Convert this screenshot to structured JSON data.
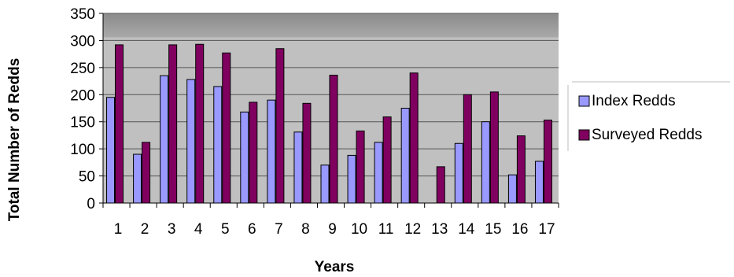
{
  "chart_data": {
    "type": "bar",
    "title": "",
    "xlabel": "Years",
    "ylabel": "Total Number of Redds",
    "ylim": [
      0,
      350
    ],
    "yticks": [
      0,
      50,
      100,
      150,
      200,
      250,
      300,
      350
    ],
    "grid": true,
    "legend_position": "right",
    "categories": [
      "1",
      "2",
      "3",
      "4",
      "5",
      "6",
      "7",
      "8",
      "9",
      "10",
      "11",
      "12",
      "13",
      "14",
      "15",
      "16",
      "17"
    ],
    "series": [
      {
        "name": "Index Redds",
        "color": "#9999ff",
        "values": [
          195,
          90,
          235,
          228,
          215,
          168,
          190,
          131,
          70,
          88,
          112,
          175,
          null,
          110,
          150,
          52,
          77
        ]
      },
      {
        "name": "Surveyed Redds",
        "color": "#800060",
        "values": [
          292,
          112,
          292,
          293,
          277,
          186,
          285,
          184,
          236,
          133,
          159,
          240,
          67,
          200,
          205,
          124,
          153
        ]
      }
    ]
  }
}
